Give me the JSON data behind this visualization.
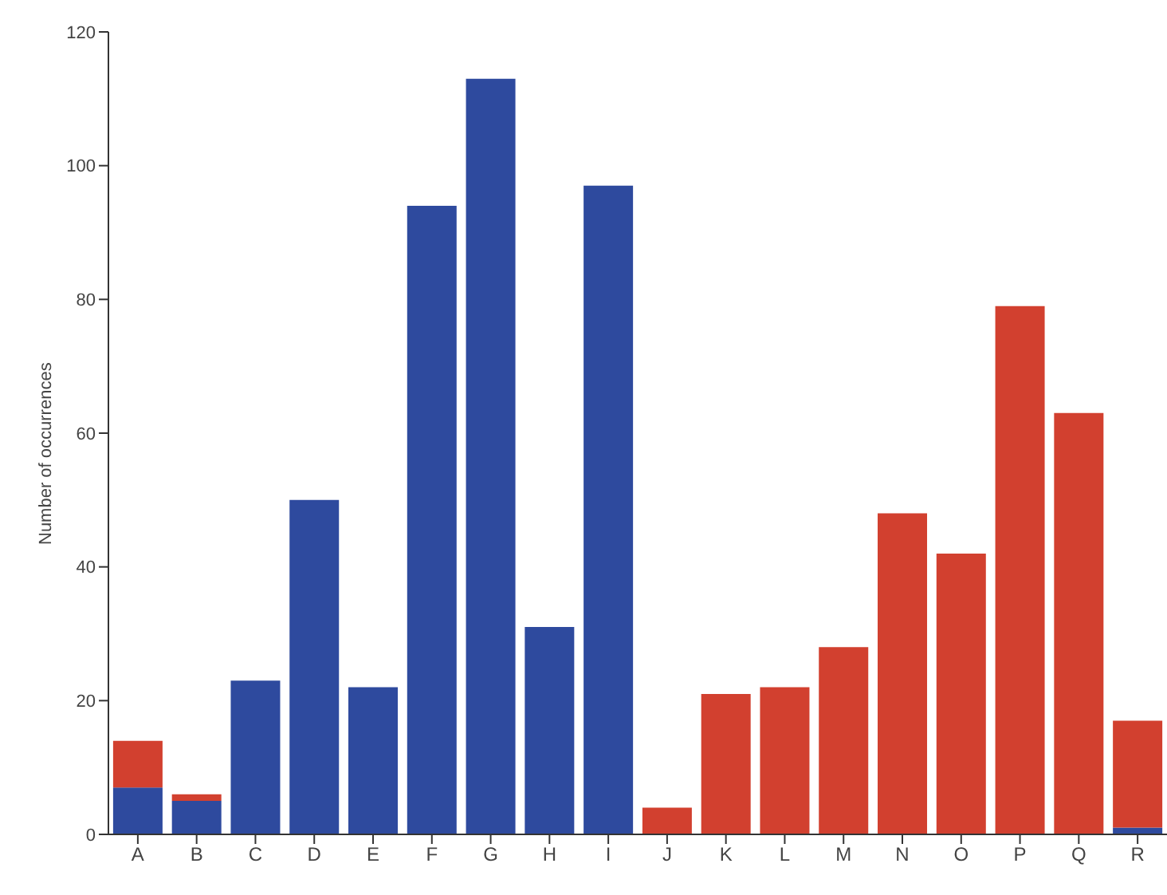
{
  "chart_data": {
    "type": "bar",
    "stacked": true,
    "ylabel": "Number of occurrences",
    "categories": [
      "A",
      "B",
      "C",
      "D",
      "E",
      "F",
      "G",
      "H",
      "I",
      "J",
      "K",
      "L",
      "M",
      "N",
      "O",
      "P",
      "Q",
      "R"
    ],
    "series": [
      {
        "color": "#2e4a9e",
        "values": [
          7,
          5,
          23,
          50,
          22,
          94,
          113,
          31,
          97,
          0,
          0,
          0,
          0,
          0,
          0,
          0,
          0,
          1
        ]
      },
      {
        "color": "#d2402f",
        "values": [
          7,
          1,
          0,
          0,
          0,
          0,
          0,
          0,
          0,
          4,
          21,
          22,
          28,
          48,
          42,
          79,
          63,
          16
        ]
      }
    ],
    "ylim": [
      0,
      120
    ],
    "yticks": [
      0,
      20,
      40,
      60,
      80,
      100,
      120
    ],
    "grid": false,
    "legend": false
  }
}
